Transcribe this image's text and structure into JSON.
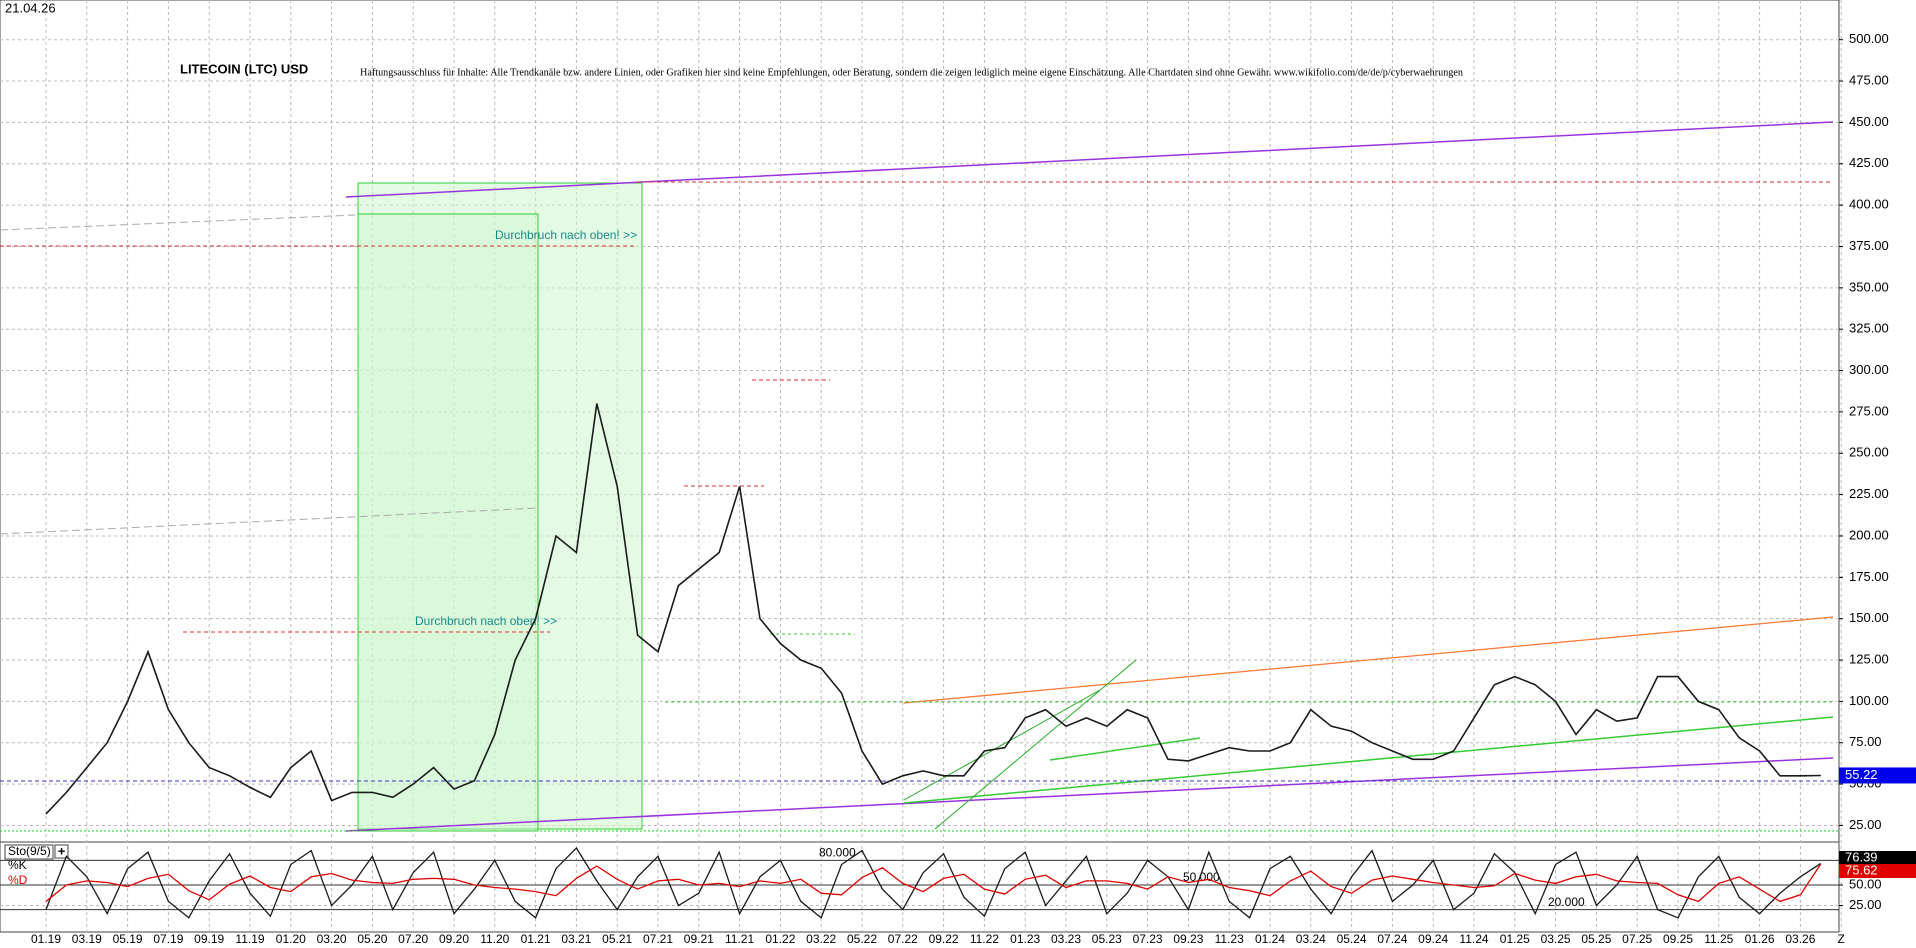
{
  "chart_data": [
    {
      "type": "line",
      "title": "LITECOIN (LTC) USD",
      "date": "21.04.26",
      "disclaimer": "Haftungsausschluss für Inhalte: Alle Trendkanäle bzw. andere Linien, oder Grafiken hier sind keine Empfehlungen, oder Beratung, sondern die zeigen lediglich meine eigene Einschätzung. Alle Chartdaten sind ohne Gewähr.  www.wikifolio.com/de/de/p/cyberwaehrungen",
      "annotations": [
        "Durchbruch nach oben! >>",
        "Durchbruch nach oben! >>"
      ],
      "categories": [
        "01.19",
        null,
        "03.19",
        null,
        "05.19",
        null,
        "07.19",
        null,
        "09.19",
        null,
        "11.19",
        null,
        "01.20",
        null,
        "03.20",
        null,
        "05.20",
        null,
        "07.20",
        null,
        "09.20",
        null,
        "11.20",
        null,
        "01.21",
        null,
        "03.21",
        null,
        "05.21",
        null,
        "07.21",
        null,
        "09.21",
        null,
        "11.21",
        null,
        "01.22",
        null,
        "03.22",
        null,
        "05.22",
        null,
        "07.22",
        null,
        "09.22",
        null,
        "11.22",
        null,
        "01.23",
        null,
        "03.23",
        null,
        "05.23",
        null,
        "07.23",
        null,
        "09.23",
        null,
        "11.23",
        null,
        "01.24",
        null,
        "03.24",
        null,
        "05.24",
        null,
        "07.24",
        null,
        "09.24",
        null,
        "11.24",
        null,
        "01.25",
        null,
        "03.25",
        null,
        "05.25",
        null,
        "07.25",
        null,
        "09.25",
        null,
        "11.25",
        null,
        "01.26",
        null,
        "03.26",
        null,
        "Z"
      ],
      "series": [
        {
          "color": "#1a1a1a",
          "values": [
            32,
            45,
            60,
            75,
            100,
            130,
            95,
            75,
            60,
            55,
            48,
            42,
            60,
            70,
            40,
            45,
            45,
            42,
            50,
            60,
            47,
            52,
            80,
            125,
            150,
            200,
            190,
            280,
            230,
            140,
            130,
            170,
            180,
            190,
            230,
            150,
            135,
            125,
            120,
            105,
            70,
            50,
            55,
            58,
            55,
            55,
            70,
            72,
            90,
            95,
            85,
            90,
            85,
            95,
            90,
            65,
            64,
            68,
            72,
            70,
            70,
            75,
            95,
            85,
            82,
            75,
            70,
            65,
            65,
            70,
            90,
            110,
            115,
            110,
            100,
            80,
            95,
            88,
            90,
            115,
            115,
            100,
            95,
            78,
            70,
            55,
            55,
            55.22,
            null
          ]
        }
      ],
      "price_flag": {
        "value": 55.22,
        "label": "55.22"
      },
      "ylim": [
        15,
        524
      ],
      "yticks": [
        {
          "value": 25,
          "label": "25.00"
        },
        {
          "value": 50,
          "label": "50.00"
        },
        {
          "value": 75,
          "label": "75.00"
        },
        {
          "value": 100,
          "label": "100.00"
        },
        {
          "value": 125,
          "label": "125.00"
        },
        {
          "value": 150,
          "label": "150.00"
        },
        {
          "value": 175,
          "label": "175.00"
        },
        {
          "value": 200,
          "label": "200.00"
        },
        {
          "value": 225,
          "label": "225.00"
        },
        {
          "value": 250,
          "label": "250.00"
        },
        {
          "value": 275,
          "label": "275.00"
        },
        {
          "value": 300,
          "label": "300.00"
        },
        {
          "value": 325,
          "label": "325.00"
        },
        {
          "value": 350,
          "label": "350.00"
        },
        {
          "value": 375,
          "label": "375.00"
        },
        {
          "value": 400,
          "label": "400.00"
        },
        {
          "value": 425,
          "label": "425.00"
        },
        {
          "value": 450,
          "label": "450.00"
        },
        {
          "value": 475,
          "label": "475.00"
        },
        {
          "value": 500,
          "label": "500.00"
        }
      ],
      "grid": true
    },
    {
      "type": "line",
      "title": "Sto(9/5)",
      "series": [
        {
          "name": "%K",
          "color": "#1a1a1a",
          "values": [
            20,
            85,
            60,
            15,
            70,
            90,
            30,
            10,
            55,
            88,
            40,
            12,
            75,
            92,
            25,
            50,
            85,
            20,
            65,
            90,
            15,
            45,
            80,
            30,
            10,
            70,
            95,
            55,
            20,
            60,
            85,
            25,
            40,
            90,
            15,
            60,
            80,
            30,
            10,
            75,
            92,
            45,
            20,
            65,
            88,
            35,
            12,
            70,
            90,
            25,
            55,
            85,
            15,
            40,
            80,
            60,
            20,
            90,
            30,
            10,
            70,
            85,
            45,
            15,
            60,
            92,
            30,
            50,
            80,
            20,
            40,
            88,
            65,
            15,
            75,
            90,
            25,
            50,
            85,
            20,
            10,
            60,
            85,
            35,
            15,
            40,
            60,
            76.39,
            null
          ]
        },
        {
          "name": "%D",
          "color": "#e00000",
          "values": [
            30,
            50,
            55,
            53,
            48,
            58,
            63,
            43,
            32,
            51,
            61,
            47,
            42,
            60,
            64,
            56,
            53,
            52,
            57,
            58,
            57,
            50,
            47,
            45,
            42,
            37,
            58,
            73,
            57,
            45,
            55,
            57,
            50,
            52,
            48,
            55,
            52,
            57,
            40,
            38,
            59,
            71,
            52,
            42,
            58,
            63,
            45,
            39,
            57,
            62,
            47,
            55,
            55,
            52,
            45,
            60,
            53,
            57,
            47,
            43,
            37,
            55,
            67,
            48,
            40,
            56,
            61,
            57,
            53,
            50,
            47,
            49,
            64,
            56,
            52,
            60,
            63,
            55,
            53,
            52,
            38,
            30,
            52,
            60,
            45,
            30,
            38,
            75.62,
            null
          ]
        }
      ],
      "flags": [
        {
          "value": 76.39,
          "label": "76.39"
        },
        {
          "value": 75.62,
          "label": "75.62"
        }
      ],
      "levels": [
        {
          "value": 80,
          "label": "80.000"
        },
        {
          "value": 50,
          "label": "50.000"
        },
        {
          "value": 20,
          "label": "20.000"
        }
      ],
      "ylim": [
        0,
        100
      ],
      "yticks": [
        {
          "value": 25,
          "label": "25.00"
        },
        {
          "value": 50,
          "label": "50.00"
        }
      ],
      "grid": true
    }
  ]
}
